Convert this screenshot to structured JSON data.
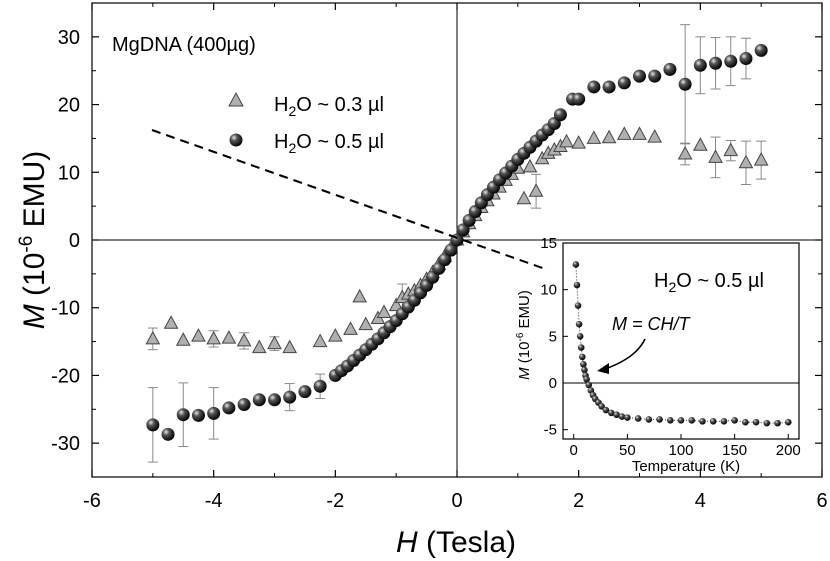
{
  "chart_data": [
    {
      "type": "scatter",
      "title": "",
      "annotation": "MgDNA (400µg)",
      "xlabel_var": "H",
      "xlabel_unit": " (Tesla)",
      "ylabel_var": "M",
      "ylabel_pre": " (10",
      "ylabel_exp": "-6",
      "ylabel_post": " EMU)",
      "xlim": [
        -6,
        6
      ],
      "ylim": [
        -35,
        35
      ],
      "xticks": [
        -6,
        -4,
        -2,
        0,
        2,
        4,
        6
      ],
      "yticks": [
        -30,
        -20,
        -10,
        0,
        10,
        20,
        30
      ],
      "zero_lines": true,
      "legend_position": "upper-left",
      "series": [
        {
          "name": "H2O ~ 0.3 µl",
          "legend": {
            "pre": "H",
            "sub": "2",
            "post": "O ~ 0.3 µl"
          },
          "marker": "triangle",
          "color": "#b0b0b0",
          "points": [
            [
              -5.0,
              -14.6,
              1.6
            ],
            [
              -4.7,
              -12.3,
              0
            ],
            [
              -4.5,
              -14.8,
              0
            ],
            [
              -4.25,
              -14.2,
              0
            ],
            [
              -4.0,
              -14.6,
              1.2
            ],
            [
              -3.75,
              -14.5,
              0
            ],
            [
              -3.5,
              -14.9,
              1.2
            ],
            [
              -3.25,
              -15.9,
              0
            ],
            [
              -3.0,
              -15.3,
              1.0
            ],
            [
              -2.75,
              -15.9,
              0
            ],
            [
              -2.25,
              -15.0,
              0
            ],
            [
              -2.0,
              -14.2,
              0
            ],
            [
              -1.75,
              -13.2,
              0
            ],
            [
              -1.6,
              -8.4,
              0
            ],
            [
              -1.5,
              -12.5,
              0
            ],
            [
              -1.3,
              -11.6,
              0
            ],
            [
              -1.2,
              -10.7,
              0
            ],
            [
              -1.0,
              -9.7,
              0
            ],
            [
              -0.9,
              -8.5,
              2.0
            ],
            [
              -0.8,
              -8.0,
              0
            ],
            [
              -0.7,
              -7.5,
              0
            ],
            [
              -0.6,
              -6.7,
              0
            ],
            [
              -0.5,
              -5.8,
              0
            ],
            [
              -0.4,
              -4.8,
              0
            ],
            [
              -0.3,
              -3.6,
              0
            ],
            [
              -0.2,
              -2.4,
              0
            ],
            [
              -0.1,
              -1.2,
              0
            ],
            [
              0.0,
              0.0,
              0
            ],
            [
              0.1,
              1.2,
              0
            ],
            [
              0.2,
              2.4,
              0
            ],
            [
              0.3,
              3.6,
              0
            ],
            [
              0.4,
              4.8,
              0
            ],
            [
              0.5,
              5.8,
              0
            ],
            [
              0.6,
              6.8,
              0
            ],
            [
              0.7,
              7.8,
              0
            ],
            [
              0.8,
              8.8,
              0
            ],
            [
              0.9,
              9.7,
              0
            ],
            [
              1.0,
              10.6,
              0
            ],
            [
              1.1,
              6.1,
              0
            ],
            [
              1.2,
              10.8,
              0
            ],
            [
              1.3,
              7.2,
              2.5
            ],
            [
              1.4,
              12.0,
              0
            ],
            [
              1.5,
              12.8,
              0
            ],
            [
              1.6,
              13.3,
              0
            ],
            [
              1.7,
              13.8,
              0
            ],
            [
              1.8,
              14.5,
              0
            ],
            [
              2.0,
              14.3,
              0
            ],
            [
              2.25,
              15.0,
              0
            ],
            [
              2.5,
              15.1,
              0
            ],
            [
              2.75,
              15.6,
              0
            ],
            [
              3.0,
              15.6,
              0
            ],
            [
              3.25,
              15.2,
              0
            ],
            [
              3.75,
              12.7,
              1.6
            ],
            [
              4.0,
              14.0,
              0
            ],
            [
              4.25,
              12.2,
              3.0
            ],
            [
              4.5,
              13.2,
              1.5
            ],
            [
              4.75,
              11.4,
              3.2
            ],
            [
              5.0,
              11.8,
              2.8
            ]
          ]
        },
        {
          "name": "H2O ~ 0.5 µl",
          "legend": {
            "pre": "H",
            "sub": "2",
            "post": "O ~ 0.5 µl"
          },
          "marker": "sphere",
          "color": "#1a1a1a",
          "points": [
            [
              -5.0,
              -27.3,
              5.5
            ],
            [
              -4.75,
              -28.7,
              0
            ],
            [
              -4.5,
              -25.8,
              4.7
            ],
            [
              -4.25,
              -25.9,
              0
            ],
            [
              -4.0,
              -25.6,
              3.8
            ],
            [
              -3.75,
              -24.8,
              0
            ],
            [
              -3.5,
              -24.3,
              0
            ],
            [
              -3.25,
              -23.6,
              0
            ],
            [
              -3.0,
              -23.6,
              0
            ],
            [
              -2.75,
              -23.2,
              2.0
            ],
            [
              -2.5,
              -22.4,
              0
            ],
            [
              -2.25,
              -21.6,
              1.8
            ],
            [
              -2.0,
              -20.0,
              0
            ],
            [
              -1.9,
              -19.3,
              0
            ],
            [
              -1.8,
              -18.6,
              0
            ],
            [
              -1.7,
              -17.8,
              0
            ],
            [
              -1.6,
              -17.0,
              0
            ],
            [
              -1.5,
              -16.2,
              0
            ],
            [
              -1.4,
              -15.4,
              0
            ],
            [
              -1.3,
              -14.6,
              0
            ],
            [
              -1.2,
              -13.7,
              0
            ],
            [
              -1.1,
              -12.8,
              0
            ],
            [
              -1.0,
              -11.9,
              0
            ],
            [
              -0.9,
              -10.9,
              0
            ],
            [
              -0.8,
              -9.9,
              0
            ],
            [
              -0.7,
              -8.9,
              0
            ],
            [
              -0.6,
              -7.8,
              0
            ],
            [
              -0.5,
              -6.7,
              0
            ],
            [
              -0.4,
              -5.5,
              0
            ],
            [
              -0.3,
              -4.2,
              0
            ],
            [
              -0.2,
              -2.9,
              0
            ],
            [
              -0.1,
              -1.5,
              0
            ],
            [
              0.0,
              0.0,
              0
            ],
            [
              0.1,
              1.5,
              0
            ],
            [
              0.2,
              2.9,
              0
            ],
            [
              0.3,
              4.2,
              0
            ],
            [
              0.4,
              5.5,
              0
            ],
            [
              0.5,
              6.7,
              0
            ],
            [
              0.6,
              7.8,
              0
            ],
            [
              0.7,
              8.9,
              0
            ],
            [
              0.8,
              9.9,
              0
            ],
            [
              0.9,
              10.9,
              0
            ],
            [
              1.0,
              11.9,
              0
            ],
            [
              1.1,
              12.8,
              0
            ],
            [
              1.2,
              13.7,
              0
            ],
            [
              1.3,
              14.6,
              0
            ],
            [
              1.4,
              15.5,
              0
            ],
            [
              1.5,
              16.3,
              0
            ],
            [
              1.6,
              17.2,
              0
            ],
            [
              1.7,
              18.5,
              0
            ],
            [
              1.9,
              20.8,
              0
            ],
            [
              2.0,
              20.8,
              0
            ],
            [
              2.25,
              22.6,
              0
            ],
            [
              2.5,
              22.6,
              0
            ],
            [
              2.75,
              23.2,
              0
            ],
            [
              3.0,
              24.2,
              0
            ],
            [
              3.25,
              24.2,
              0
            ],
            [
              3.5,
              25.2,
              0
            ],
            [
              3.75,
              23.0,
              8.8
            ],
            [
              4.0,
              25.8,
              4.2
            ],
            [
              4.25,
              26.1,
              3.8
            ],
            [
              4.5,
              26.4,
              3.6
            ],
            [
              4.75,
              26.8,
              3.0
            ],
            [
              5.0,
              28.0,
              0
            ]
          ]
        }
      ]
    },
    {
      "type": "scatter",
      "inset": true,
      "title": "",
      "annotation": {
        "pre": "H",
        "sub": "2",
        "post": "O ~ 0.5 µl"
      },
      "formula": "M = CH/T",
      "xlabel": "Temperature (K)",
      "ylabel_var": "M",
      "ylabel_pre": " (10",
      "ylabel_exp": "-6",
      "ylabel_post": " EMU)",
      "xlim": [
        -10,
        210
      ],
      "ylim": [
        -6,
        15
      ],
      "xticks": [
        0,
        50,
        100,
        150,
        200
      ],
      "yticks": [
        -5,
        0,
        5,
        10,
        15
      ],
      "zero_line": true,
      "points": [
        [
          2,
          12.7
        ],
        [
          3,
          10.5
        ],
        [
          4,
          8.3
        ],
        [
          5,
          6.3
        ],
        [
          6,
          5.0
        ],
        [
          7,
          3.8
        ],
        [
          8,
          2.8
        ],
        [
          9,
          2.0
        ],
        [
          10,
          1.4
        ],
        [
          11,
          0.8
        ],
        [
          12,
          0.4
        ],
        [
          14,
          -0.2
        ],
        [
          16,
          -0.8
        ],
        [
          18,
          -1.3
        ],
        [
          20,
          -1.7
        ],
        [
          23,
          -2.1
        ],
        [
          26,
          -2.5
        ],
        [
          30,
          -2.9
        ],
        [
          35,
          -3.2
        ],
        [
          40,
          -3.4
        ],
        [
          45,
          -3.6
        ],
        [
          50,
          -3.7
        ],
        [
          60,
          -3.8
        ],
        [
          70,
          -3.9
        ],
        [
          80,
          -3.9
        ],
        [
          90,
          -4.0
        ],
        [
          100,
          -4.0
        ],
        [
          110,
          -4.0
        ],
        [
          120,
          -4.1
        ],
        [
          130,
          -4.1
        ],
        [
          140,
          -4.1
        ],
        [
          150,
          -4.0
        ],
        [
          160,
          -4.2
        ],
        [
          170,
          -4.2
        ],
        [
          180,
          -4.3
        ],
        [
          190,
          -4.3
        ],
        [
          200,
          -4.2
        ]
      ]
    }
  ]
}
